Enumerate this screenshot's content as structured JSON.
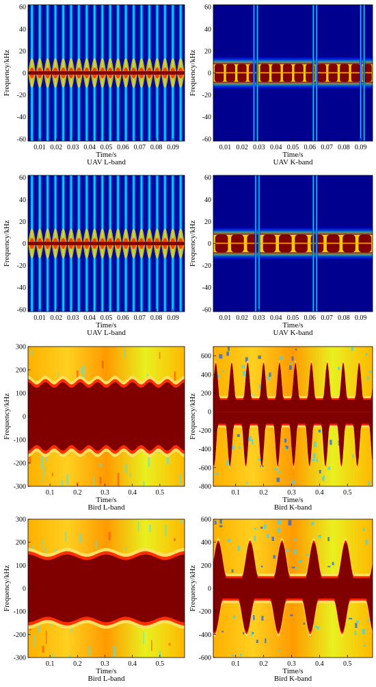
{
  "figure": {
    "panels": [
      {
        "id": "uav-l-1",
        "caption": "UAV L-band",
        "xlabel": "Time/s",
        "ylabel": "Frequency/kHz",
        "xticks": [
          "0.01",
          "0.02",
          "0.03",
          "0.04",
          "0.05",
          "0.06",
          "0.07",
          "0.08",
          "0.09"
        ],
        "yticks": [
          "60",
          "40",
          "20",
          "0",
          "-20",
          "-40",
          "-60"
        ]
      },
      {
        "id": "uav-k-1",
        "caption": "UAV K-band",
        "xlabel": "Time/s",
        "ylabel": "Frequency/kHz",
        "xticks": [
          "0.01",
          "0.02",
          "0.03",
          "0.04",
          "0.05",
          "0.06",
          "0.07",
          "0.08",
          "0.09"
        ],
        "yticks": [
          "60",
          "40",
          "20",
          "0",
          "-20",
          "-40",
          "-60"
        ]
      },
      {
        "id": "uav-l-2",
        "caption": "UAV L-band",
        "xlabel": "Time/s",
        "ylabel": "Frequency/kHz",
        "xticks": [
          "0.01",
          "0.02",
          "0.03",
          "0.04",
          "0.05",
          "0.06",
          "0.07",
          "0.08",
          "0.09"
        ],
        "yticks": [
          "60",
          "40",
          "20",
          "0",
          "-20",
          "-40",
          "-60"
        ]
      },
      {
        "id": "uav-k-2",
        "caption": "UAV K-band",
        "xlabel": "Time/s",
        "ylabel": "Frequency/kHz",
        "xticks": [
          "0.01",
          "0.02",
          "0.03",
          "0.04",
          "0.05",
          "0.06",
          "0.07",
          "0.08",
          "0.09"
        ],
        "yticks": [
          "60",
          "40",
          "20",
          "0",
          "-20",
          "-40",
          "-60"
        ]
      },
      {
        "id": "bird-l-1",
        "caption": "Bird L-band",
        "xlabel": "Time/s",
        "ylabel": "Frequency/kHz",
        "xticks": [
          "0.1",
          "0.2",
          "0.3",
          "0.4",
          "0.5"
        ],
        "yticks": [
          "300",
          "200",
          "100",
          "0",
          "-100",
          "-200",
          "-300"
        ]
      },
      {
        "id": "bird-k-1",
        "caption": "Bird K-band",
        "xlabel": "Time/s",
        "ylabel": "Frequency/kHz",
        "xticks": [
          "0.1",
          "0.2",
          "0.3",
          "0.4",
          "0.5"
        ],
        "yticks": [
          "600",
          "400",
          "200",
          "0",
          "-200",
          "-400",
          "-600",
          "-800"
        ]
      },
      {
        "id": "bird-l-2",
        "caption": "Bird L-band",
        "xlabel": "Time/s",
        "ylabel": "Frequency/kHz",
        "xticks": [
          "0.1",
          "0.2",
          "0.3",
          "0.4",
          "0.5"
        ],
        "yticks": [
          "300",
          "200",
          "100",
          "0",
          "-100",
          "-200",
          "-300"
        ]
      },
      {
        "id": "bird-k-2",
        "caption": "Bird K-band",
        "xlabel": "Time/s",
        "ylabel": "Frequency/kHz",
        "xticks": [
          "0.1",
          "0.2",
          "0.3",
          "0.4",
          "0.5"
        ],
        "yticks": [
          "600",
          "400",
          "200",
          "0",
          "-200",
          "-400",
          "-600"
        ]
      }
    ]
  },
  "chart_data": [
    {
      "type": "heatmap",
      "title": "UAV L-band",
      "xlabel": "Time/s",
      "ylabel": "Frequency/kHz",
      "xlim": [
        0.003,
        0.097
      ],
      "ylim": [
        -62,
        62
      ],
      "pattern": "vertical-flashes",
      "flash_count": 20,
      "band_half_width_khz": 1.5,
      "colormap": "jet"
    },
    {
      "type": "heatmap",
      "title": "UAV K-band",
      "xlabel": "Time/s",
      "ylabel": "Frequency/kHz",
      "xlim": [
        0.003,
        0.097
      ],
      "ylim": [
        -62,
        62
      ],
      "pattern": "pulsed-band",
      "band_half_width_khz": 8,
      "pulse_count": 14,
      "flash_times": [
        0.027,
        0.029,
        0.062,
        0.064,
        0.09,
        0.092
      ],
      "colormap": "jet"
    },
    {
      "type": "heatmap",
      "title": "UAV L-band",
      "xlabel": "Time/s",
      "ylabel": "Frequency/kHz",
      "xlim": [
        0.003,
        0.097
      ],
      "ylim": [
        -62,
        62
      ],
      "pattern": "vertical-flashes",
      "flash_count": 20,
      "band_half_width_khz": 1.5,
      "colormap": "jet"
    },
    {
      "type": "heatmap",
      "title": "UAV K-band",
      "xlabel": "Time/s",
      "ylabel": "Frequency/kHz",
      "xlim": [
        0.003,
        0.097
      ],
      "ylim": [
        -62,
        62
      ],
      "pattern": "pulsed-band",
      "band_half_width_khz": 8,
      "pulse_count": 10,
      "flash_times": [
        0.028,
        0.03,
        0.062,
        0.064
      ],
      "colormap": "jet"
    },
    {
      "type": "heatmap",
      "title": "Bird L-band",
      "xlabel": "Time/s",
      "ylabel": "Frequency/kHz",
      "xlim": [
        0.02,
        0.59
      ],
      "ylim": [
        -300,
        300
      ],
      "pattern": "body-band",
      "band_half_width_khz": 135,
      "ripple_khz": 12,
      "ripple_cycles": 9,
      "colormap": "jet"
    },
    {
      "type": "heatmap",
      "title": "Bird K-band",
      "xlabel": "Time/s",
      "ylabel": "Frequency/kHz",
      "xlim": [
        0.02,
        0.59
      ],
      "ylim": [
        -800,
        700
      ],
      "pattern": "wing-beats",
      "upper_lobe_peak_khz": 520,
      "lower_lobe_peak_khz": -580,
      "wingbeat_cycles": 10,
      "colormap": "jet"
    },
    {
      "type": "heatmap",
      "title": "Bird L-band",
      "xlabel": "Time/s",
      "ylabel": "Frequency/kHz",
      "xlim": [
        0.02,
        0.59
      ],
      "ylim": [
        -300,
        300
      ],
      "pattern": "body-band",
      "band_half_width_khz": 135,
      "ripple_khz": 12,
      "ripple_cycles": 4,
      "colormap": "jet"
    },
    {
      "type": "heatmap",
      "title": "Bird K-band",
      "xlabel": "Time/s",
      "ylabel": "Frequency/kHz",
      "xlim": [
        0.02,
        0.59
      ],
      "ylim": [
        -600,
        600
      ],
      "pattern": "wing-beats",
      "upper_lobe_peak_khz": 400,
      "lower_lobe_peak_khz": -380,
      "wingbeat_cycles": 5,
      "colormap": "jet"
    }
  ],
  "colors": {
    "jet_dark_red": "#800000",
    "jet_red": "#ff0000",
    "jet_orange": "#ff8000",
    "jet_yellow": "#ffff00",
    "jet_cyan": "#00ffff",
    "jet_light_blue": "#0080ff",
    "jet_blue": "#0000ff",
    "jet_dark_blue": "#00008f"
  }
}
